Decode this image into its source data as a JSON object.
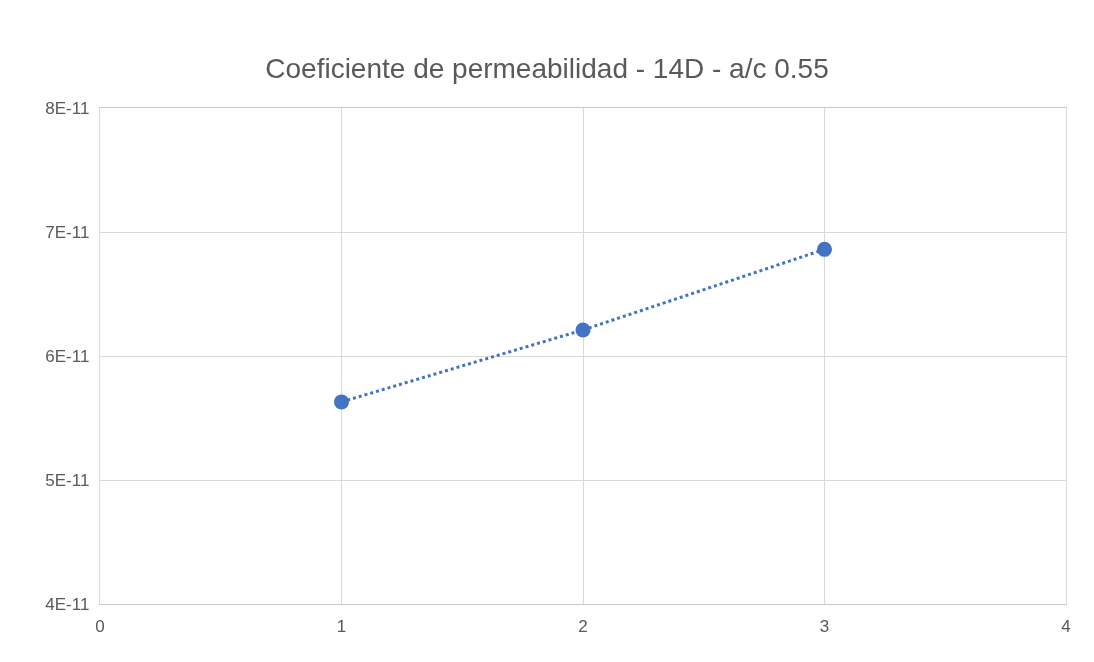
{
  "chart_data": {
    "type": "line",
    "title": "Coeficiente de permeabilidad - 14D - a/c 0.55",
    "x": [
      1,
      2,
      3
    ],
    "series": [
      {
        "color": "#4472c4",
        "values": [
          5.63e-11,
          6.21e-11,
          6.86e-11
        ]
      }
    ],
    "xlim": [
      0,
      4
    ],
    "xticks": [
      0,
      1,
      2,
      3,
      4
    ],
    "ylim": [
      4e-11,
      8e-11
    ],
    "yticks": [
      {
        "value": 4e-11,
        "label": "4E-11"
      },
      {
        "value": 5e-11,
        "label": "5E-11"
      },
      {
        "value": 6e-11,
        "label": "6E-11"
      },
      {
        "value": 7e-11,
        "label": "7E-11"
      },
      {
        "value": 8e-11,
        "label": "8E-11"
      }
    ],
    "grid": true,
    "marker": "circle",
    "line_style": "dotted"
  }
}
